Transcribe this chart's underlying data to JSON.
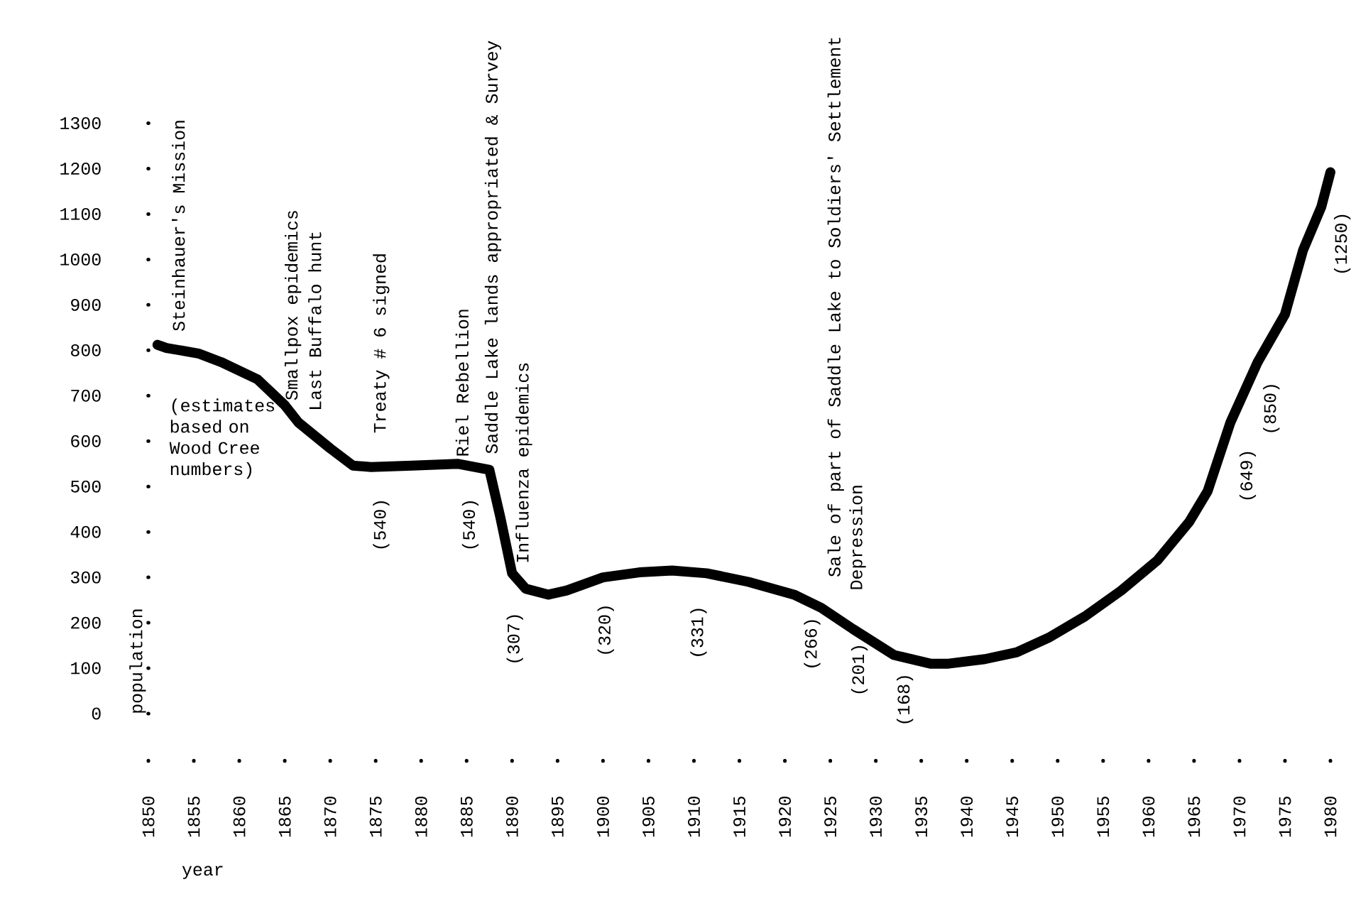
{
  "chart_data": {
    "type": "line",
    "xlabel": "year",
    "ylabel": "population",
    "color": "#000000",
    "x": [
      1851,
      1852,
      1855.5,
      1858,
      1862,
      1865,
      1866.5,
      1870,
      1872.5,
      1874.5,
      1879,
      1884,
      1887.5,
      1888.7,
      1890,
      1891.5,
      1894,
      1896,
      1900,
      1904,
      1907.6,
      1911.4,
      1916,
      1921,
      1924,
      1927.5,
      1932,
      1936,
      1938,
      1942,
      1945.5,
      1949,
      1953,
      1957,
      1961,
      1964.5,
      1966.5,
      1969,
      1972,
      1975,
      1977,
      1979,
      1980
    ],
    "values": [
      812,
      805,
      793,
      774,
      736,
      679,
      641,
      584,
      546,
      543,
      546,
      550,
      537,
      433,
      309,
      275,
      262,
      271,
      300,
      311,
      315,
      309,
      290,
      262,
      233,
      186,
      129,
      110,
      110,
      120,
      135,
      167,
      214,
      271,
      338,
      423,
      490,
      641,
      774,
      879,
      1021,
      1116,
      1192
    ],
    "xlim": [
      1850,
      1980
    ],
    "ylim": [
      0,
      1300
    ],
    "xticks": [
      1850,
      1855,
      1860,
      1865,
      1870,
      1875,
      1880,
      1885,
      1890,
      1895,
      1900,
      1905,
      1910,
      1915,
      1920,
      1925,
      1930,
      1935,
      1940,
      1945,
      1950,
      1955,
      1960,
      1965,
      1970,
      1975,
      1980
    ],
    "yticks": [
      0,
      100,
      200,
      300,
      400,
      500,
      600,
      700,
      800,
      900,
      1000,
      1100,
      1200,
      1300
    ],
    "grid": false,
    "annotations": [
      "Steinhauer's Mission",
      "Smallpox epidemics",
      "Last Buffalo hunt",
      "Treaty # 6 signed",
      "Riel Rebellion",
      "Saddle Lake lands appropriated & Survey",
      "Influenza epidemics",
      "Sale of part of Saddle Lake to Soldiers' Settlement",
      "Depression",
      "(estimates based on Wood Cree numbers)",
      "(540)",
      "(540)",
      "(307)",
      "(320)",
      "(331)",
      "(266)",
      "(201)",
      "(168)",
      "(649)",
      "(850)",
      "(1250)"
    ]
  }
}
